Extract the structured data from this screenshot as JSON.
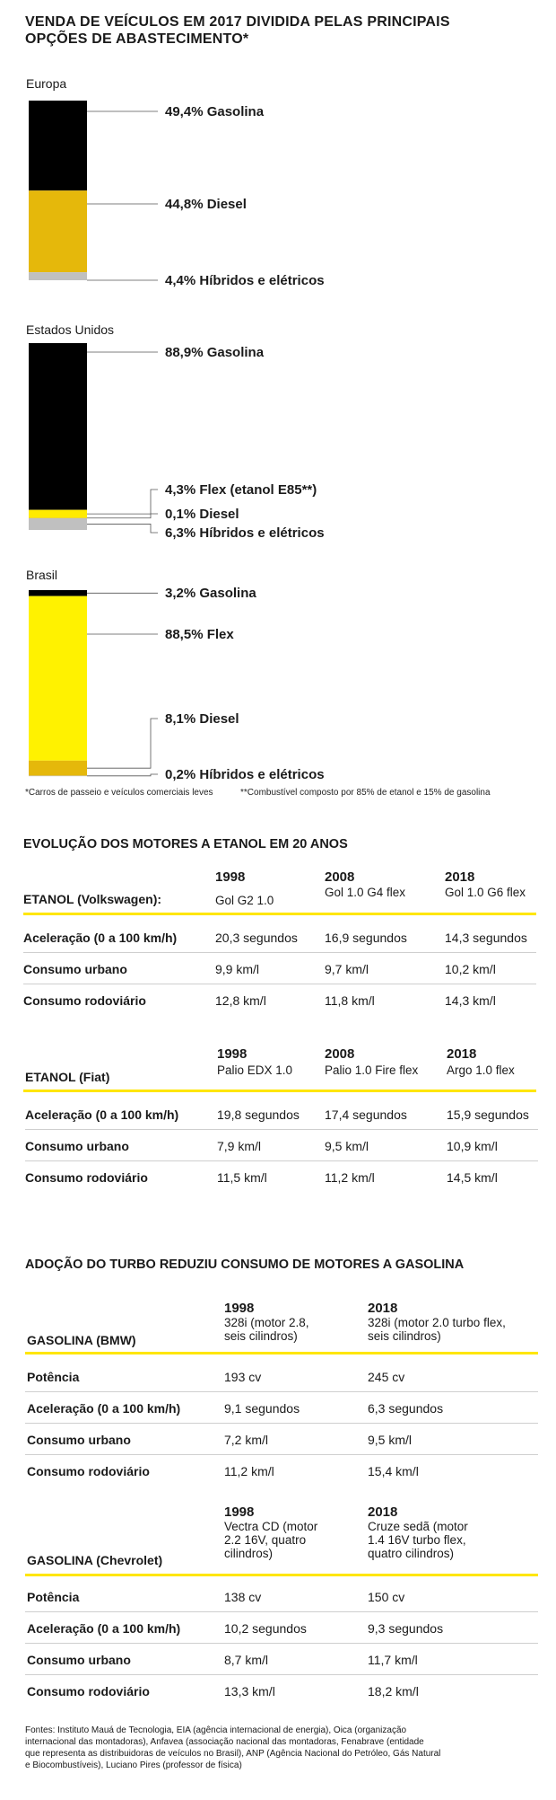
{
  "title_line1": "VENDA DE VEÍCULOS EM 2017 DIVIDIDA PELAS PRINCIPAIS",
  "title_line2": "OPÇÕES DE ABASTECIMENTO*",
  "colors": {
    "gasolina": "#000000",
    "diesel_europa": "#e5b80b",
    "hibridos": "#c0c0c0",
    "flex_eua": "#ffeb00",
    "flex_brasil": "#fff200",
    "diesel_brasil": "#e5b80b",
    "highlight": "#ffe600"
  },
  "chart_data": [
    {
      "type": "stacked_bar",
      "region": "Europa",
      "segments": [
        {
          "label": "49,4% Gasolina",
          "value": 49.4,
          "fuel": "Gasolina",
          "color": "#000000"
        },
        {
          "label": "44,8% Diesel",
          "value": 44.8,
          "fuel": "Diesel",
          "color": "#e5b80b"
        },
        {
          "label": "4,4% Híbridos e elétricos",
          "value": 4.4,
          "fuel": "Híbridos e elétricos",
          "color": "#c0c0c0"
        }
      ]
    },
    {
      "type": "stacked_bar",
      "region": "Estados Unidos",
      "segments": [
        {
          "label": "88,9% Gasolina",
          "value": 88.9,
          "fuel": "Gasolina",
          "color": "#000000"
        },
        {
          "label": "4,3% Flex (etanol E85**)",
          "value": 4.3,
          "fuel": "Flex",
          "color": "#ffeb00"
        },
        {
          "label": "0,1% Diesel",
          "value": 0.1,
          "fuel": "Diesel",
          "color": "#e5b80b"
        },
        {
          "label": "6,3% Híbridos e elétricos",
          "value": 6.3,
          "fuel": "Híbridos e elétricos",
          "color": "#c0c0c0"
        }
      ]
    },
    {
      "type": "stacked_bar",
      "region": "Brasil",
      "segments": [
        {
          "label": "3,2% Gasolina",
          "value": 3.2,
          "fuel": "Gasolina",
          "color": "#000000"
        },
        {
          "label": "88,5% Flex",
          "value": 88.5,
          "fuel": "Flex",
          "color": "#fff200"
        },
        {
          "label": "8,1% Diesel",
          "value": 8.1,
          "fuel": "Diesel",
          "color": "#e5b80b"
        },
        {
          "label": "0,2% Híbridos e elétricos",
          "value": 0.2,
          "fuel": "Híbridos e elétricos",
          "color": "#c0c0c0"
        }
      ]
    }
  ],
  "footnote_left": "*Carros de passeio e veículos comerciais leves",
  "footnote_right": "**Combustível composto por 85% de etanol e 15% de gasolina",
  "etanol": {
    "title": "EVOLUÇÃO DOS MOTORES A ETANOL EM 20 ANOS",
    "vw": {
      "header": "ETANOL (Volkswagen):",
      "years": [
        "1998",
        "2008",
        "2018"
      ],
      "models": [
        "Gol G2 1.0",
        "Gol 1.0 G4 flex",
        "Gol 1.0 G6 flex"
      ],
      "rows": [
        {
          "label": "Aceleração (0 a 100 km/h)",
          "values": [
            "20,3 segundos",
            "16,9 segundos",
            "14,3 segundos"
          ]
        },
        {
          "label": "Consumo urbano",
          "values": [
            "9,9 km/l",
            "9,7 km/l",
            "10,2 km/l"
          ]
        },
        {
          "label": "Consumo rodoviário",
          "values": [
            "12,8 km/l",
            "11,8 km/l",
            "14,3 km/l"
          ]
        }
      ]
    },
    "fiat": {
      "header": "ETANOL (Fiat)",
      "years": [
        "1998",
        "2008",
        "2018"
      ],
      "models": [
        "Palio EDX 1.0",
        "Palio 1.0 Fire flex",
        "Argo 1.0 flex"
      ],
      "rows": [
        {
          "label": "Aceleração (0 a 100 km/h)",
          "values": [
            "19,8 segundos",
            "17,4 segundos",
            "15,9 segundos"
          ]
        },
        {
          "label": "Consumo urbano",
          "values": [
            "7,9 km/l",
            "9,5 km/l",
            "10,9 km/l"
          ]
        },
        {
          "label": "Consumo rodoviário",
          "values": [
            "11,5 km/l",
            "11,2 km/l",
            "14,5 km/l"
          ]
        }
      ]
    }
  },
  "gasolina": {
    "title": "ADOÇÃO DO TURBO REDUZIU CONSUMO DE MOTORES A GASOLINA",
    "bmw": {
      "header": "GASOLINA (BMW)",
      "years": [
        "1998",
        "2018"
      ],
      "models": [
        [
          "328i (motor 2.8,",
          "seis cilindros)"
        ],
        [
          "328i (motor 2.0 turbo flex,",
          "seis cilindros)"
        ]
      ],
      "rows": [
        {
          "label": "Potência",
          "values": [
            "193 cv",
            "245 cv"
          ]
        },
        {
          "label": "Aceleração (0 a 100 km/h)",
          "values": [
            "9,1 segundos",
            "6,3 segundos"
          ]
        },
        {
          "label": "Consumo urbano",
          "values": [
            "7,2 km/l",
            "9,5 km/l"
          ]
        },
        {
          "label": "Consumo rodoviário",
          "values": [
            "11,2 km/l",
            "15,4 km/l"
          ]
        }
      ]
    },
    "chev": {
      "header": "GASOLINA (Chevrolet)",
      "years": [
        "1998",
        "2018"
      ],
      "models": [
        [
          "Vectra CD (motor",
          "2.2 16V, quatro",
          "cilindros)"
        ],
        [
          "Cruze sedã (motor",
          "1.4 16V turbo flex,",
          "quatro cilindros)"
        ]
      ],
      "rows": [
        {
          "label": "Potência",
          "values": [
            "138 cv",
            "150 cv"
          ]
        },
        {
          "label": "Aceleração (0 a 100 km/h)",
          "values": [
            "10,2 segundos",
            "9,3 segundos"
          ]
        },
        {
          "label": "Consumo urbano",
          "values": [
            "8,7 km/l",
            "11,7 km/l"
          ]
        },
        {
          "label": "Consumo rodoviário",
          "values": [
            "13,3 km/l",
            "18,2 km/l"
          ]
        }
      ]
    }
  },
  "sources": [
    "Fontes: Instituto Mauá de Tecnologia,  EIA (agência internacional de energia), Oica (organização",
    "internacional das montadoras), Anfavea (associação nacional das montadoras, Fenabrave (entidade",
    "que representa as distribuidoras de veículos no Brasil), ANP (Agência Nacional do Petróleo, Gás Natural",
    "e Biocombustíveis), Luciano Pires (professor de física)"
  ]
}
